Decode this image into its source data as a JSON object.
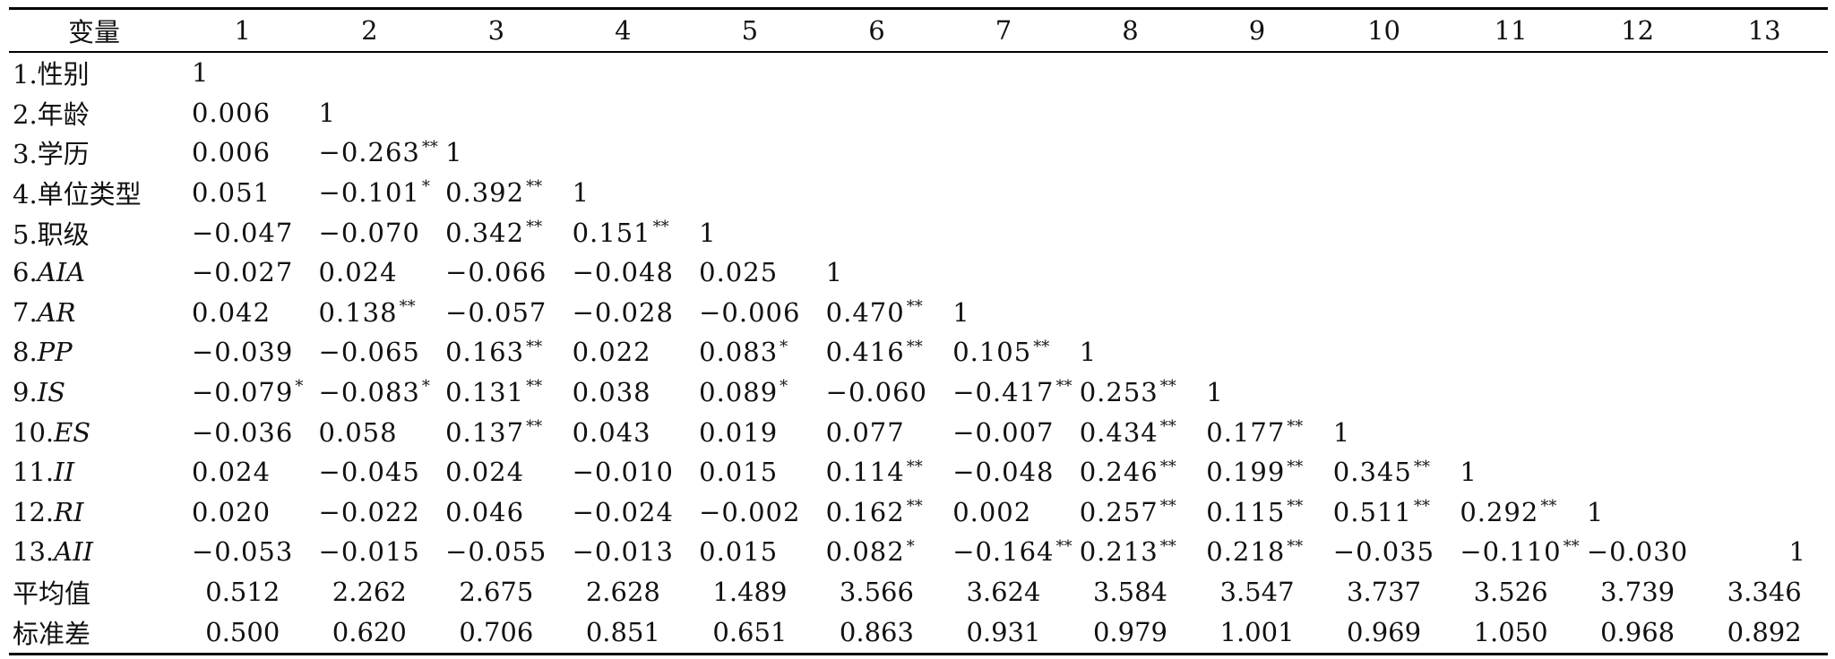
{
  "table": {
    "header": [
      "变量",
      "1",
      "2",
      "3",
      "4",
      "5",
      "6",
      "7",
      "8",
      "9",
      "10",
      "11",
      "12",
      "13"
    ],
    "rows": [
      {
        "prefix": "1.",
        "label": "性别",
        "italic": false,
        "cells": [
          [
            "1",
            ""
          ],
          [
            "",
            ""
          ],
          [
            "",
            ""
          ],
          [
            "",
            ""
          ],
          [
            "",
            ""
          ],
          [
            "",
            ""
          ],
          [
            "",
            ""
          ],
          [
            "",
            ""
          ],
          [
            "",
            ""
          ],
          [
            "",
            ""
          ],
          [
            "",
            ""
          ],
          [
            "",
            ""
          ],
          [
            "",
            ""
          ]
        ]
      },
      {
        "prefix": "2.",
        "label": "年龄",
        "italic": false,
        "cells": [
          [
            "0.006",
            ""
          ],
          [
            "1",
            ""
          ],
          [
            "",
            ""
          ],
          [
            "",
            ""
          ],
          [
            "",
            ""
          ],
          [
            "",
            ""
          ],
          [
            "",
            ""
          ],
          [
            "",
            ""
          ],
          [
            "",
            ""
          ],
          [
            "",
            ""
          ],
          [
            "",
            ""
          ],
          [
            "",
            ""
          ],
          [
            "",
            ""
          ]
        ]
      },
      {
        "prefix": "3.",
        "label": "学历",
        "italic": false,
        "cells": [
          [
            "0.006",
            ""
          ],
          [
            "−0.263",
            "**"
          ],
          [
            "1",
            ""
          ],
          [
            "",
            ""
          ],
          [
            "",
            ""
          ],
          [
            "",
            ""
          ],
          [
            "",
            ""
          ],
          [
            "",
            ""
          ],
          [
            "",
            ""
          ],
          [
            "",
            ""
          ],
          [
            "",
            ""
          ],
          [
            "",
            ""
          ],
          [
            "",
            ""
          ]
        ]
      },
      {
        "prefix": "4.",
        "label": "单位类型",
        "italic": false,
        "cells": [
          [
            "0.051",
            ""
          ],
          [
            "−0.101",
            "*"
          ],
          [
            "0.392",
            "**"
          ],
          [
            "1",
            ""
          ],
          [
            "",
            ""
          ],
          [
            "",
            ""
          ],
          [
            "",
            ""
          ],
          [
            "",
            ""
          ],
          [
            "",
            ""
          ],
          [
            "",
            ""
          ],
          [
            "",
            ""
          ],
          [
            "",
            ""
          ],
          [
            "",
            ""
          ]
        ]
      },
      {
        "prefix": "5.",
        "label": "职级",
        "italic": false,
        "cells": [
          [
            "−0.047",
            ""
          ],
          [
            "−0.070",
            ""
          ],
          [
            "0.342",
            "**"
          ],
          [
            "0.151",
            "**"
          ],
          [
            "1",
            ""
          ],
          [
            "",
            ""
          ],
          [
            "",
            ""
          ],
          [
            "",
            ""
          ],
          [
            "",
            ""
          ],
          [
            "",
            ""
          ],
          [
            "",
            ""
          ],
          [
            "",
            ""
          ],
          [
            "",
            ""
          ]
        ]
      },
      {
        "prefix": "6.",
        "label": "AIA",
        "italic": true,
        "cells": [
          [
            "−0.027",
            ""
          ],
          [
            "0.024",
            ""
          ],
          [
            "−0.066",
            ""
          ],
          [
            "−0.048",
            ""
          ],
          [
            "0.025",
            ""
          ],
          [
            "1",
            ""
          ],
          [
            "",
            ""
          ],
          [
            "",
            ""
          ],
          [
            "",
            ""
          ],
          [
            "",
            ""
          ],
          [
            "",
            ""
          ],
          [
            "",
            ""
          ],
          [
            "",
            ""
          ]
        ]
      },
      {
        "prefix": "7.",
        "label": "AR",
        "italic": true,
        "cells": [
          [
            "0.042",
            ""
          ],
          [
            "0.138",
            "**"
          ],
          [
            "−0.057",
            ""
          ],
          [
            "−0.028",
            ""
          ],
          [
            "−0.006",
            ""
          ],
          [
            "0.470",
            "**"
          ],
          [
            "1",
            ""
          ],
          [
            "",
            ""
          ],
          [
            "",
            ""
          ],
          [
            "",
            ""
          ],
          [
            "",
            ""
          ],
          [
            "",
            ""
          ],
          [
            "",
            ""
          ]
        ]
      },
      {
        "prefix": "8.",
        "label": "PP",
        "italic": true,
        "cells": [
          [
            "−0.039",
            ""
          ],
          [
            "−0.065",
            ""
          ],
          [
            "0.163",
            "**"
          ],
          [
            "0.022",
            ""
          ],
          [
            "0.083",
            "*"
          ],
          [
            "0.416",
            "**"
          ],
          [
            "0.105",
            "**"
          ],
          [
            "1",
            ""
          ],
          [
            "",
            ""
          ],
          [
            "",
            ""
          ],
          [
            "",
            ""
          ],
          [
            "",
            ""
          ],
          [
            "",
            ""
          ]
        ]
      },
      {
        "prefix": "9.",
        "label": "IS",
        "italic": true,
        "cells": [
          [
            "−0.079",
            "*"
          ],
          [
            "−0.083",
            "*"
          ],
          [
            "0.131",
            "**"
          ],
          [
            "0.038",
            ""
          ],
          [
            "0.089",
            "*"
          ],
          [
            "−0.060",
            ""
          ],
          [
            "−0.417",
            "**"
          ],
          [
            "0.253",
            "**"
          ],
          [
            "1",
            ""
          ],
          [
            "",
            ""
          ],
          [
            "",
            ""
          ],
          [
            "",
            ""
          ],
          [
            "",
            ""
          ]
        ]
      },
      {
        "prefix": "10.",
        "label": "ES",
        "italic": true,
        "cells": [
          [
            "−0.036",
            ""
          ],
          [
            "0.058",
            ""
          ],
          [
            "0.137",
            "**"
          ],
          [
            "0.043",
            ""
          ],
          [
            "0.019",
            ""
          ],
          [
            "0.077",
            ""
          ],
          [
            "−0.007",
            ""
          ],
          [
            "0.434",
            "**"
          ],
          [
            "0.177",
            "**"
          ],
          [
            "1",
            ""
          ],
          [
            "",
            ""
          ],
          [
            "",
            ""
          ],
          [
            "",
            ""
          ]
        ]
      },
      {
        "prefix": "11.",
        "label": "II",
        "italic": true,
        "cells": [
          [
            "0.024",
            ""
          ],
          [
            "−0.045",
            ""
          ],
          [
            "0.024",
            ""
          ],
          [
            "−0.010",
            ""
          ],
          [
            "0.015",
            ""
          ],
          [
            "0.114",
            "**"
          ],
          [
            "−0.048",
            ""
          ],
          [
            "0.246",
            "**"
          ],
          [
            "0.199",
            "**"
          ],
          [
            "0.345",
            "**"
          ],
          [
            "1",
            ""
          ],
          [
            "",
            ""
          ],
          [
            "",
            ""
          ]
        ]
      },
      {
        "prefix": "12.",
        "label": "RI",
        "italic": true,
        "cells": [
          [
            "0.020",
            ""
          ],
          [
            "−0.022",
            ""
          ],
          [
            "0.046",
            ""
          ],
          [
            "−0.024",
            ""
          ],
          [
            "−0.002",
            ""
          ],
          [
            "0.162",
            "**"
          ],
          [
            "0.002",
            ""
          ],
          [
            "0.257",
            "**"
          ],
          [
            "0.115",
            "**"
          ],
          [
            "0.511",
            "**"
          ],
          [
            "0.292",
            "**"
          ],
          [
            "1",
            ""
          ],
          [
            "",
            ""
          ]
        ]
      },
      {
        "prefix": "13.",
        "label": "AII",
        "italic": true,
        "cells": [
          [
            "−0.053",
            ""
          ],
          [
            "−0.015",
            ""
          ],
          [
            "−0.055",
            ""
          ],
          [
            "−0.013",
            ""
          ],
          [
            "0.015",
            ""
          ],
          [
            "0.082",
            "*"
          ],
          [
            "−0.164",
            "**"
          ],
          [
            "0.213",
            "**"
          ],
          [
            "0.218",
            "**"
          ],
          [
            "−0.035",
            ""
          ],
          [
            "−0.110",
            "**"
          ],
          [
            "−0.030",
            ""
          ],
          [
            "1",
            ""
          ]
        ]
      }
    ],
    "stats": [
      {
        "label": "平均值",
        "values": [
          "0.512",
          "2.262",
          "2.675",
          "2.628",
          "1.489",
          "3.566",
          "3.624",
          "3.584",
          "3.547",
          "3.737",
          "3.526",
          "3.739",
          "3.346"
        ]
      },
      {
        "label": "标准差",
        "values": [
          "0.500",
          "0.620",
          "0.706",
          "0.851",
          "0.651",
          "0.863",
          "0.931",
          "0.979",
          "1.001",
          "0.969",
          "1.050",
          "0.968",
          "0.892"
        ]
      }
    ]
  }
}
